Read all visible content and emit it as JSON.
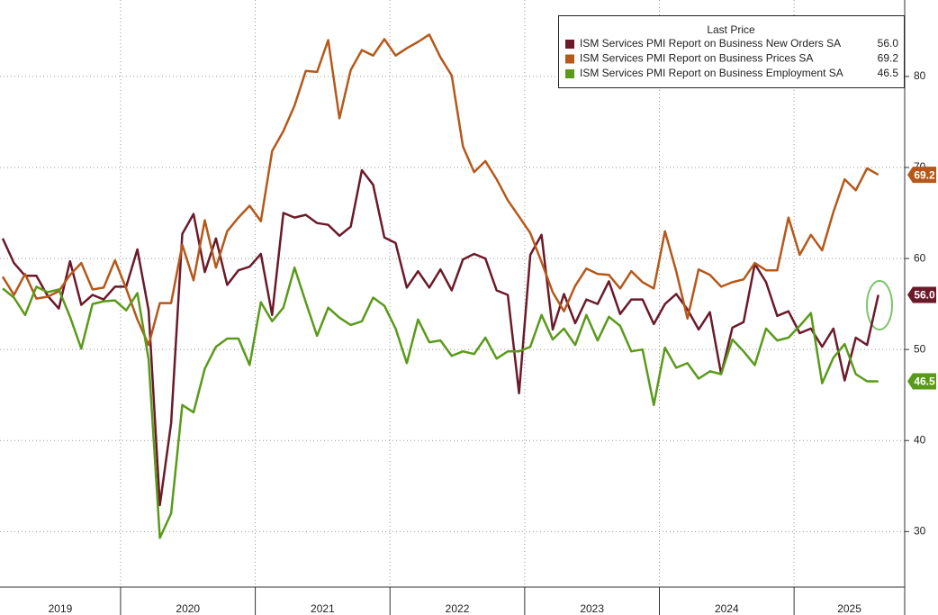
{
  "chart_data": {
    "type": "line",
    "legend_title": "Last Price",
    "x_labels": [
      "2019",
      "2020",
      "2021",
      "2022",
      "2023",
      "2024",
      "2025"
    ],
    "ylim": [
      23.9,
      88.4
    ],
    "yticks": [
      30,
      40,
      50,
      60,
      70,
      80
    ],
    "grid": true,
    "legend": "top-right",
    "series": [
      {
        "name": "ISM Services PMI Report on Business New Orders SA",
        "color": "#6b1a2a",
        "last_value_label": "56.0",
        "values": [
          62.2,
          59.5,
          58.1,
          58.1,
          55.9,
          54.5,
          59.7,
          54.9,
          56.0,
          55.5,
          56.9,
          56.9,
          61.0,
          54.3,
          32.9,
          41.9,
          62.7,
          64.9,
          58.5,
          62.2,
          57.1,
          58.7,
          59.1,
          60.5,
          53.8,
          65.0,
          64.5,
          64.8,
          63.9,
          63.7,
          62.5,
          63.5,
          69.7,
          68.1,
          62.3,
          61.7,
          56.8,
          58.6,
          56.8,
          58.8,
          56.5,
          59.9,
          60.5,
          60.0,
          56.5,
          56.0,
          45.2,
          60.4,
          62.6,
          52.2,
          56.1,
          52.9,
          55.5,
          55.0,
          57.5,
          53.9,
          55.5,
          55.5,
          52.8,
          55.0,
          56.1,
          54.4,
          52.2,
          54.1,
          47.3,
          52.4,
          53.0,
          59.4,
          57.4,
          53.7,
          54.2,
          51.8,
          52.3,
          50.3,
          52.3,
          46.6,
          51.3,
          50.5,
          56.0
        ]
      },
      {
        "name": "ISM Services PMI Report on Business Prices SA",
        "color": "#b5581a",
        "last_value_label": "69.2",
        "values": [
          58.0,
          56.0,
          58.3,
          55.6,
          55.8,
          56.4,
          58.2,
          59.5,
          56.6,
          56.8,
          59.8,
          56.7,
          53.3,
          50.5,
          55.1,
          55.1,
          61.5,
          57.6,
          64.2,
          59.0,
          63.0,
          64.5,
          65.8,
          64.1,
          71.8,
          74.0,
          76.8,
          80.6,
          80.5,
          84.0,
          75.4,
          80.7,
          82.9,
          82.3,
          84.1,
          82.3,
          83.1,
          83.8,
          84.6,
          82.1,
          80.1,
          72.3,
          69.5,
          70.7,
          68.7,
          66.4,
          64.6,
          62.8,
          59.6,
          56.3,
          54.2,
          57.0,
          58.9,
          58.3,
          58.2,
          56.7,
          58.6,
          57.4,
          56.7,
          63.0,
          58.6,
          53.4,
          58.8,
          58.2,
          56.9,
          57.4,
          57.7,
          59.5,
          58.7,
          58.7,
          64.5,
          60.4,
          62.6,
          60.9,
          65.1,
          68.7,
          67.5,
          69.9,
          69.2
        ]
      },
      {
        "name": "ISM Services PMI Report on Business Employment SA",
        "color": "#5a9a1a",
        "last_value_label": "46.5",
        "values": [
          56.7,
          55.7,
          53.8,
          56.9,
          56.3,
          56.6,
          53.6,
          50.1,
          55.0,
          55.3,
          55.4,
          54.3,
          56.2,
          48.9,
          29.3,
          32.0,
          43.9,
          43.1,
          47.9,
          50.3,
          51.2,
          51.2,
          48.3,
          55.2,
          53.1,
          54.6,
          59.0,
          55.2,
          51.5,
          54.6,
          53.5,
          52.7,
          53.1,
          55.7,
          54.8,
          52.3,
          48.5,
          53.3,
          50.8,
          51.0,
          49.3,
          49.8,
          49.5,
          51.3,
          49.0,
          49.8,
          49.8,
          50.3,
          53.8,
          51.1,
          52.3,
          50.5,
          53.8,
          51.0,
          53.6,
          52.6,
          49.8,
          50.0,
          43.9,
          50.2,
          48.0,
          48.5,
          46.8,
          47.6,
          47.3,
          51.1,
          49.8,
          48.3,
          52.3,
          51.0,
          51.3,
          52.6,
          54.0,
          46.3,
          49.1,
          50.6,
          47.3,
          46.5,
          46.5
        ]
      }
    ]
  }
}
